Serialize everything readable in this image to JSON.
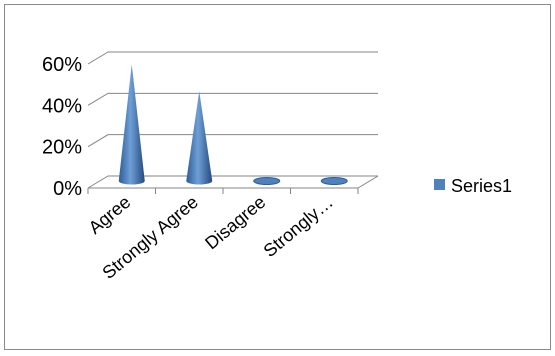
{
  "chart_data": {
    "type": "bar",
    "style": "3d-cone",
    "categories": [
      "Agree",
      "Strongly Agree",
      "Disagree",
      "Strongly…"
    ],
    "series": [
      {
        "name": "Series1",
        "values": [
          57,
          44,
          0,
          0
        ]
      }
    ],
    "y_ticks": [
      "0%",
      "20%",
      "40%",
      "60%"
    ],
    "ylim": [
      0,
      60
    ],
    "grid": true,
    "legend": "right",
    "colors": {
      "series": "#4f81bd",
      "grid": "#868686",
      "border": "#8a8a8a"
    }
  }
}
